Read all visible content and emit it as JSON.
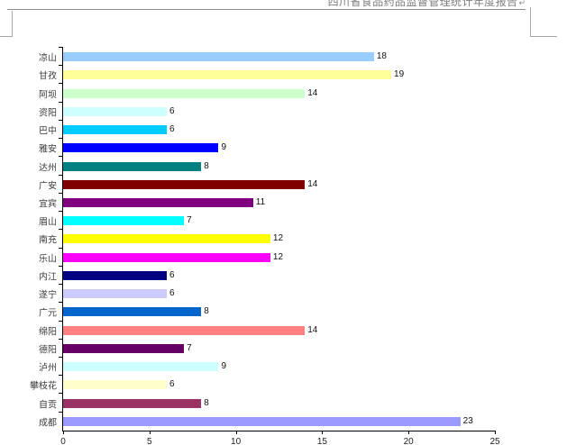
{
  "document": {
    "header_title": "四川省食品药品监督管理统计年度报告",
    "paragraph_mark": "↵"
  },
  "chart_data": {
    "type": "bar",
    "orientation": "horizontal",
    "title": "",
    "xlabel": "",
    "ylabel": "",
    "xlim": [
      0,
      25
    ],
    "x_ticks": [
      0,
      5,
      10,
      15,
      20,
      25
    ],
    "grid": false,
    "legend": false,
    "category_order": "top-to-bottom",
    "categories": [
      "凉山",
      "甘孜",
      "阿坝",
      "资阳",
      "巴中",
      "雅安",
      "达州",
      "广安",
      "宜宾",
      "眉山",
      "南充",
      "乐山",
      "内江",
      "遂宁",
      "广元",
      "绵阳",
      "德阳",
      "泸州",
      "攀枝花",
      "自贡",
      "成都"
    ],
    "values": [
      18,
      19,
      14,
      6,
      6,
      9,
      8,
      14,
      11,
      7,
      12,
      12,
      6,
      6,
      8,
      14,
      7,
      9,
      6,
      8,
      23
    ],
    "bar_colors": [
      "#99CCFF",
      "#FFFF99",
      "#CCFFCC",
      "#CCFFFF",
      "#00CCFF",
      "#0000FF",
      "#008080",
      "#800000",
      "#800080",
      "#00FFFF",
      "#FFFF00",
      "#FF00FF",
      "#000080",
      "#CCCCFF",
      "#0066CC",
      "#FF8080",
      "#660066",
      "#CCFFFF",
      "#FFFFCC",
      "#993366",
      "#9999FF"
    ],
    "axis_color": "#000000",
    "label_color": "#3c3c3c"
  }
}
